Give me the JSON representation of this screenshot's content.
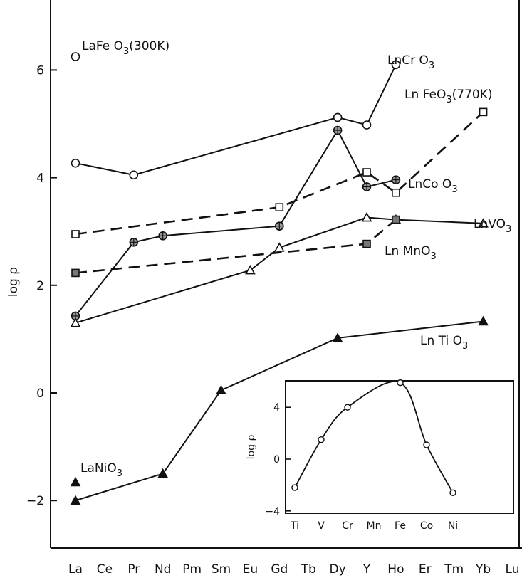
{
  "chart_data": [
    {
      "type": "line",
      "ylabel": "log ρ",
      "xlabel": "",
      "categories": [
        "La",
        "Ce",
        "Pr",
        "Nd",
        "Pm",
        "Sm",
        "Eu",
        "Gd",
        "Tb",
        "Dy",
        "Y",
        "Ho",
        "Er",
        "Tm",
        "Yb",
        "Lu"
      ],
      "ylim": [
        -3.5,
        7
      ],
      "yticks": [
        -2,
        0,
        2,
        4,
        6
      ],
      "grid": false,
      "legend": "none",
      "series": [
        {
          "name": "LaFeO3(300K)",
          "marker": "circle",
          "line": "none",
          "points": [
            {
              "x": "La",
              "y": 6.25
            }
          ]
        },
        {
          "name": "LnCrO3",
          "marker": "circle",
          "line": "solid",
          "points": [
            {
              "x": "La",
              "y": 4.27
            },
            {
              "x": "Pr",
              "y": 4.05
            },
            {
              "x": "Dy",
              "y": 5.12
            },
            {
              "x": "Y",
              "y": 4.98
            },
            {
              "x": "Ho",
              "y": 6.1
            }
          ]
        },
        {
          "name": "LnFeO3(770K)",
          "marker": "square",
          "line": "dashed",
          "points": [
            {
              "x": "La",
              "y": 2.95
            },
            {
              "x": "Gd",
              "y": 3.45
            },
            {
              "x": "Y",
              "y": 4.1
            },
            {
              "x": "Ho",
              "y": 3.72
            },
            {
              "x": "Yb",
              "y": 5.22
            }
          ]
        },
        {
          "name": "LnCoO3",
          "marker": "circle-cross",
          "line": "solid",
          "points": [
            {
              "x": "La",
              "y": 1.43
            },
            {
              "x": "Pr",
              "y": 2.8
            },
            {
              "x": "Nd",
              "y": 2.92
            },
            {
              "x": "Gd",
              "y": 3.1
            },
            {
              "x": "Dy",
              "y": 4.88
            },
            {
              "x": "Y",
              "y": 3.83
            },
            {
              "x": "Ho",
              "y": 3.96
            }
          ]
        },
        {
          "name": "LnVO3",
          "marker": "triangle-open",
          "line": "solid",
          "points": [
            {
              "x": "La",
              "y": 1.3
            },
            {
              "x": "Eu",
              "y": 2.28
            },
            {
              "x": "Gd",
              "y": 2.7
            },
            {
              "x": "Y",
              "y": 3.26
            },
            {
              "x": "Ho",
              "y": 3.22
            },
            {
              "x": "Yb",
              "y": 3.15
            }
          ]
        },
        {
          "name": "LnMnO3",
          "marker": "square-filled",
          "line": "dashed",
          "points": [
            {
              "x": "La",
              "y": 2.23
            },
            {
              "x": "Y",
              "y": 2.77
            },
            {
              "x": "Ho",
              "y": 3.22
            }
          ]
        },
        {
          "name": "LnTiO3",
          "marker": "triangle-filled",
          "line": "solid",
          "points": [
            {
              "x": "La",
              "y": -2.0
            },
            {
              "x": "Nd",
              "y": -1.5
            },
            {
              "x": "Sm",
              "y": 0.05
            },
            {
              "x": "Dy",
              "y": 1.02
            },
            {
              "x": "Yb",
              "y": 1.33
            }
          ]
        },
        {
          "name": "LaNiO3",
          "marker": "triangle-filled",
          "line": "none",
          "points": [
            {
              "x": "La",
              "y": -1.66
            }
          ]
        }
      ],
      "labels": {
        "LaFeO3_300K": {
          "main": "LaFe O",
          "sub": "3",
          "post": "(300K)"
        },
        "LnCrO3": {
          "main": "LnCr O",
          "sub": "3",
          "post": ""
        },
        "LnFeO3_770K": {
          "main": "Ln FeO",
          "sub": "3",
          "post": "(770K)"
        },
        "LnCoO3": {
          "main": "LnCo O",
          "sub": "3",
          "post": ""
        },
        "LnVO3": {
          "main": "LnVO",
          "sub": "3",
          "post": ""
        },
        "LnMnO3": {
          "main": "Ln MnO",
          "sub": "3",
          "post": ""
        },
        "LnTiO3": {
          "main": "Ln Ti O",
          "sub": "3",
          "post": ""
        },
        "LaNiO3": {
          "main": "LaNiO",
          "sub": "3",
          "post": ""
        }
      }
    },
    {
      "type": "line",
      "subtype": "inset",
      "ylabel": "log ρ",
      "categories": [
        "Ti",
        "V",
        "Cr",
        "Mn",
        "Fe",
        "Co",
        "Ni"
      ],
      "ylim": [
        -4,
        6.5
      ],
      "yticks": [
        -4,
        0,
        4
      ],
      "values": [
        -2.2,
        1.5,
        4.0,
        null,
        5.9,
        1.1,
        -2.6
      ],
      "marker": "circle",
      "smooth": true
    }
  ]
}
